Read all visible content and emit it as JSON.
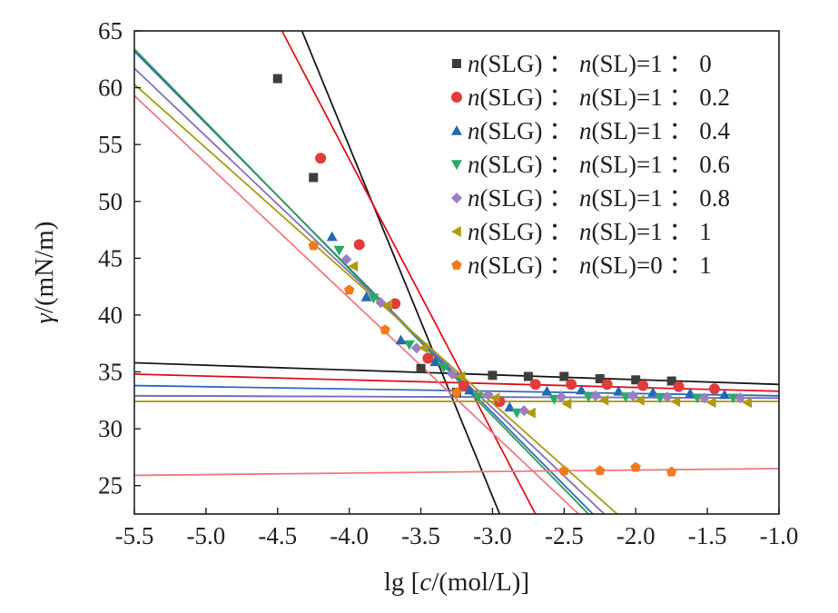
{
  "chart_data": {
    "type": "scatter",
    "xlabel": {
      "pre": "lg [",
      "italic": "c",
      "post": "/(mol/L)]"
    },
    "ylabel": {
      "italic": "γ",
      "post": "/(mN/m)"
    },
    "xlim": [
      -5.5,
      -1.0
    ],
    "ylim": [
      22.5,
      65
    ],
    "xticks": [
      -5.5,
      -5.0,
      -4.5,
      -4.0,
      -3.5,
      -3.0,
      -2.5,
      -2.0,
      -1.5,
      -1.0
    ],
    "xtick_labels": [
      "-5.5",
      "-5.0",
      "-4.5",
      "-4.0",
      "-3.5",
      "-3.0",
      "-2.5",
      "-2.0",
      "-1.5",
      "-1.0"
    ],
    "yticks": [
      25,
      30,
      35,
      40,
      45,
      50,
      55,
      60,
      65
    ],
    "ytick_labels": [
      "25",
      "30",
      "35",
      "40",
      "45",
      "50",
      "55",
      "60",
      "65"
    ],
    "grid": false,
    "legend_position": "top-right",
    "series": [
      {
        "name": "n(SLG)：n(SL)=1：0",
        "legend": {
          "a": "n",
          "b": "(SLG) ： ",
          "c": "n",
          "d": "(SL)=1 ： 0"
        },
        "marker": "square",
        "color": "#3d3d3d",
        "line_color": "#1a1a1a",
        "points": [
          [
            -4.5,
            60.8
          ],
          [
            -4.25,
            52.1
          ],
          [
            -3.5,
            35.3
          ],
          [
            -3.25,
            33.2
          ],
          [
            -3.0,
            34.7
          ],
          [
            -2.75,
            34.6
          ],
          [
            -2.5,
            34.6
          ],
          [
            -2.25,
            34.4
          ],
          [
            -2.0,
            34.3
          ],
          [
            -1.75,
            34.2
          ]
        ],
        "fit_lines": [
          [
            [
              -4.33,
              65
            ],
            [
              -2.95,
              22.5
            ]
          ],
          [
            [
              -5.5,
              35.8
            ],
            [
              -1.0,
              33.9
            ]
          ]
        ]
      },
      {
        "name": "n(SLG)：n(SL)=1：0.2",
        "legend": {
          "a": "n",
          "b": "(SLG) ： ",
          "c": "n",
          "d": "(SL)=1 ： 0.2"
        },
        "marker": "circle",
        "color": "#e03c3c",
        "line_color": "#e0141e",
        "points": [
          [
            -4.2,
            53.8
          ],
          [
            -3.93,
            46.2
          ],
          [
            -3.68,
            41.0
          ],
          [
            -3.45,
            36.2
          ],
          [
            -3.2,
            33.8
          ],
          [
            -2.95,
            32.4
          ],
          [
            -2.7,
            33.9
          ],
          [
            -2.45,
            33.9
          ],
          [
            -2.2,
            33.9
          ],
          [
            -1.95,
            33.8
          ],
          [
            -1.7,
            33.7
          ],
          [
            -1.45,
            33.5
          ]
        ],
        "fit_lines": [
          [
            [
              -4.47,
              65
            ],
            [
              -2.7,
              22.5
            ]
          ],
          [
            [
              -5.5,
              34.8
            ],
            [
              -1.0,
              33.3
            ]
          ]
        ]
      },
      {
        "name": "n(SLG)：n(SL)=1：0.4",
        "legend": {
          "a": "n",
          "b": "(SLG) ： ",
          "c": "n",
          "d": "(SL)=1 ： 0.4"
        },
        "marker": "triangle-up",
        "color": "#2469b3",
        "line_color": "#2f6cb8",
        "points": [
          [
            -4.12,
            46.9
          ],
          [
            -3.88,
            41.6
          ],
          [
            -3.64,
            37.8
          ],
          [
            -3.4,
            35.9
          ],
          [
            -3.16,
            33.4
          ],
          [
            -2.88,
            31.9
          ],
          [
            -2.62,
            33.3
          ],
          [
            -2.38,
            33.4
          ],
          [
            -2.12,
            33.3
          ],
          [
            -1.88,
            33.2
          ],
          [
            -1.62,
            33.1
          ],
          [
            -1.38,
            33.0
          ]
        ],
        "fit_lines": [
          [
            [
              -5.5,
              63.2
            ],
            [
              -2.3,
              22.5
            ]
          ],
          [
            [
              -5.5,
              33.8
            ],
            [
              -1.0,
              32.9
            ]
          ]
        ]
      },
      {
        "name": "n(SLG)：n(SL)=1：0.6",
        "legend": {
          "a": "n",
          "b": "(SLG) ： ",
          "c": "n",
          "d": "(SL)=1 ： 0.6"
        },
        "marker": "triangle-down",
        "color": "#2ea86a",
        "line_color": "#2f9b57",
        "points": [
          [
            -4.07,
            45.7
          ],
          [
            -3.83,
            41.5
          ],
          [
            -3.58,
            37.4
          ],
          [
            -3.34,
            35.4
          ],
          [
            -3.1,
            32.8
          ],
          [
            -2.83,
            31.4
          ],
          [
            -2.57,
            32.6
          ],
          [
            -2.33,
            32.8
          ],
          [
            -2.07,
            32.8
          ],
          [
            -1.83,
            32.7
          ],
          [
            -1.57,
            32.7
          ],
          [
            -1.32,
            32.7
          ]
        ],
        "fit_lines": [
          [
            [
              -5.5,
              63.4
            ],
            [
              -2.33,
              22.5
            ]
          ],
          [
            [
              -5.5,
              32.9
            ],
            [
              -1.0,
              32.7
            ]
          ]
        ]
      },
      {
        "name": "n(SLG)：n(SL)=1：0.8",
        "legend": {
          "a": "n",
          "b": "(SLG) ： ",
          "c": "n",
          "d": "(SL)=1 ： 0.8"
        },
        "marker": "diamond",
        "color": "#9b7ec4",
        "line_color": "#8070c0",
        "points": [
          [
            -4.02,
            44.9
          ],
          [
            -3.78,
            41.1
          ],
          [
            -3.53,
            37.1
          ],
          [
            -3.28,
            34.8
          ],
          [
            -3.03,
            33.0
          ],
          [
            -2.78,
            31.6
          ],
          [
            -2.52,
            32.8
          ],
          [
            -2.28,
            32.9
          ],
          [
            -2.02,
            32.9
          ],
          [
            -1.78,
            32.8
          ],
          [
            -1.52,
            32.7
          ],
          [
            -1.27,
            32.7
          ]
        ],
        "fit_lines": [
          [
            [
              -5.5,
              61.7
            ],
            [
              -2.22,
              22.5
            ]
          ],
          [
            [
              -5.5,
              32.9
            ],
            [
              -1.0,
              32.7
            ]
          ]
        ]
      },
      {
        "name": "n(SLG)：n(SL)=1：1",
        "legend": {
          "a": "n",
          "b": "(SLG) ： ",
          "c": "n",
          "d": "(SL)=1 ： 1"
        },
        "marker": "triangle-left",
        "color": "#b09a14",
        "line_color": "#a89b10",
        "points": [
          [
            -3.97,
            44.3
          ],
          [
            -3.73,
            40.9
          ],
          [
            -3.48,
            37.1
          ],
          [
            -3.22,
            34.6
          ],
          [
            -2.98,
            32.7
          ],
          [
            -2.73,
            31.4
          ],
          [
            -2.48,
            32.2
          ],
          [
            -2.22,
            32.5
          ],
          [
            -1.97,
            32.5
          ],
          [
            -1.72,
            32.4
          ],
          [
            -1.47,
            32.3
          ],
          [
            -1.22,
            32.3
          ]
        ],
        "fit_lines": [
          [
            [
              -5.5,
              60.3
            ],
            [
              -2.13,
              22.5
            ]
          ],
          [
            [
              -5.5,
              32.4
            ],
            [
              -1.0,
              32.4
            ]
          ]
        ]
      },
      {
        "name": "n(SLG)：n(SL)=0：1",
        "legend": {
          "a": "n",
          "b": "(SLG) ： ",
          "c": "n",
          "d": "(SL)=0 ： 1"
        },
        "marker": "pentagon",
        "color": "#f07a1e",
        "line_color": "#f07a82",
        "points": [
          [
            -4.25,
            46.1
          ],
          [
            -4.0,
            42.2
          ],
          [
            -3.75,
            38.7
          ],
          [
            -3.25,
            33.2
          ],
          [
            -2.5,
            26.3
          ],
          [
            -2.25,
            26.3
          ],
          [
            -2.0,
            26.6
          ],
          [
            -1.75,
            26.2
          ]
        ],
        "fit_lines": [
          [
            [
              -5.5,
              59.3
            ],
            [
              -2.4,
              22.5
            ]
          ],
          [
            [
              -5.5,
              25.9
            ],
            [
              -1.0,
              26.5
            ]
          ]
        ]
      }
    ]
  }
}
